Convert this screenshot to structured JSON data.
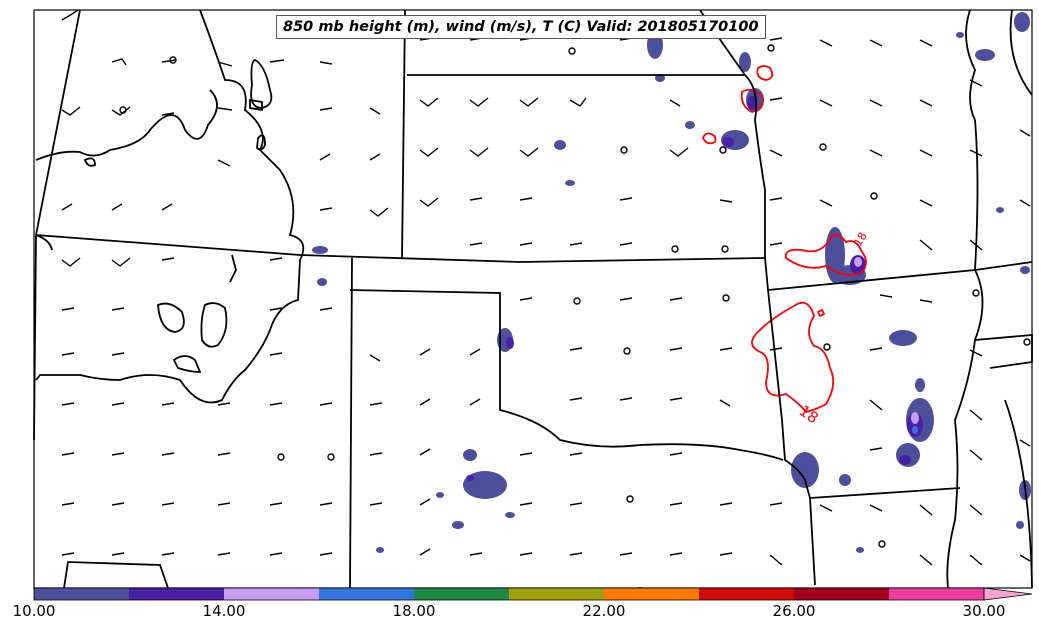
{
  "title": "850 mb height (m), wind (m/s), T (C) Valid: 201805170100",
  "contour_labels": [
    "18",
    "18"
  ],
  "colorbar": {
    "tick_labels": [
      "10.00",
      "14.00",
      "18.00",
      "22.00",
      "26.00",
      "30.00"
    ],
    "tick_values": [
      10,
      14,
      18,
      22,
      26,
      30
    ],
    "range": [
      10,
      31
    ],
    "bins": [
      {
        "from": 10,
        "to": 12,
        "color": "#4b4f9c"
      },
      {
        "from": 12,
        "to": 14,
        "color": "#4a1fa8"
      },
      {
        "from": 14,
        "to": 16,
        "color": "#c89bf5"
      },
      {
        "from": 16,
        "to": 18,
        "color": "#3275e0"
      },
      {
        "from": 18,
        "to": 20,
        "color": "#1e8a45"
      },
      {
        "from": 20,
        "to": 22,
        "color": "#9ea10c"
      },
      {
        "from": 22,
        "to": 24,
        "color": "#ff7b00"
      },
      {
        "from": 24,
        "to": 26,
        "color": "#d20a0a"
      },
      {
        "from": 26,
        "to": 28,
        "color": "#a3001f"
      },
      {
        "from": 28,
        "to": 30,
        "color": "#f03c9f"
      },
      {
        "from": 30,
        "to": 31,
        "color": "#f7a3d2"
      }
    ]
  },
  "colors": {
    "contour": "#ff0000",
    "boundaries": "#000000",
    "barbs": "#000000"
  }
}
